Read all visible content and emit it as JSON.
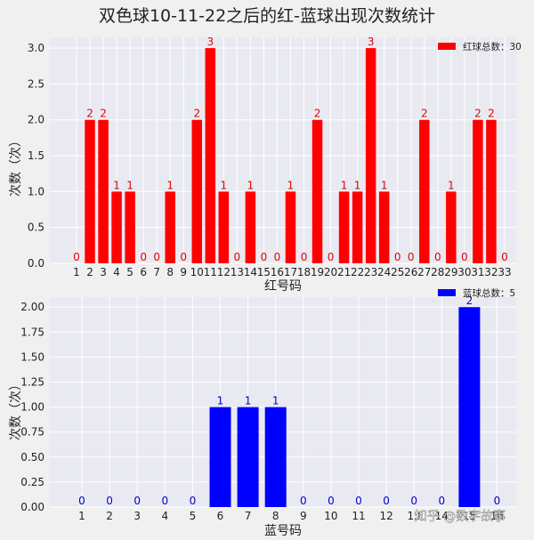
{
  "title": "双色球10-11-22之后的红-蓝球出现次数统计",
  "watermark": "知乎 @数字故事",
  "chart_data": [
    {
      "type": "bar",
      "color": "#ff0000",
      "legend": "红球总数：30",
      "legend_position": "top-right",
      "xlabel": "红号码",
      "ylabel": "次数（次）",
      "ylim": [
        0,
        3.15
      ],
      "yticks": [
        0,
        0.5,
        1.0,
        1.5,
        2.0,
        2.5,
        3.0
      ],
      "ytick_labels": [
        "0.0",
        "0.5",
        "1.0",
        "1.5",
        "2.0",
        "2.5",
        "3.0"
      ],
      "grid": true,
      "categories": [
        "1",
        "2",
        "3",
        "4",
        "5",
        "6",
        "7",
        "8",
        "9",
        "10",
        "11",
        "12",
        "13",
        "14",
        "15",
        "16",
        "17",
        "18",
        "19",
        "20",
        "21",
        "22",
        "23",
        "24",
        "25",
        "26",
        "27",
        "28",
        "29",
        "30",
        "31",
        "32",
        "33"
      ],
      "values": [
        0,
        2,
        2,
        1,
        1,
        0,
        0,
        1,
        0,
        2,
        3,
        1,
        0,
        1,
        0,
        0,
        1,
        0,
        2,
        0,
        1,
        1,
        3,
        1,
        0,
        0,
        2,
        0,
        1,
        0,
        2,
        2,
        0
      ]
    },
    {
      "type": "bar",
      "color": "#0000ff",
      "legend": "蓝球总数：5",
      "legend_position": "top-right",
      "xlabel": "蓝号码",
      "ylabel": "次数（次）",
      "ylim": [
        0,
        2.1
      ],
      "yticks": [
        0,
        0.25,
        0.5,
        0.75,
        1.0,
        1.25,
        1.5,
        1.75,
        2.0
      ],
      "ytick_labels": [
        "0.00",
        "0.25",
        "0.50",
        "0.75",
        "1.00",
        "1.25",
        "1.50",
        "1.75",
        "2.00"
      ],
      "grid": true,
      "categories": [
        "1",
        "2",
        "3",
        "4",
        "5",
        "6",
        "7",
        "8",
        "9",
        "10",
        "11",
        "12",
        "13",
        "14",
        "15",
        "16"
      ],
      "values": [
        0,
        0,
        0,
        0,
        0,
        1,
        1,
        1,
        0,
        0,
        0,
        0,
        0,
        0,
        2,
        0
      ]
    }
  ]
}
